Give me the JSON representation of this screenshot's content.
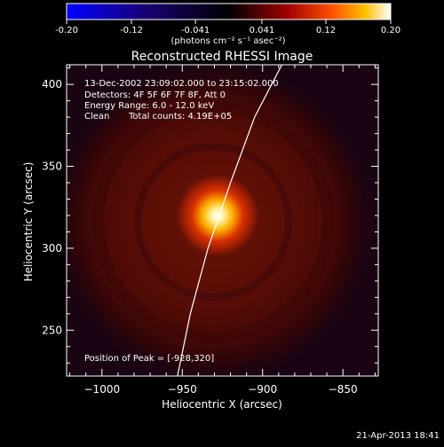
{
  "colorbar": {
    "ticks": [
      "-0.20",
      "-0.12",
      "-0.041",
      "0.041",
      "0.12",
      "0.20"
    ],
    "unit_label": "(photons cm⁻² s⁻¹ asec⁻²)"
  },
  "chart_data": {
    "type": "heatmap",
    "title": "Reconstructed RHESSI Image",
    "xlabel": "Heliocentric X (arcsec)",
    "ylabel": "Heliocentric Y (arcsec)",
    "xlim": [
      -1022,
      -828
    ],
    "ylim": [
      222,
      412
    ],
    "x_ticks": [
      -1000,
      -950,
      -900,
      -850
    ],
    "y_ticks": [
      250,
      300,
      350,
      400
    ],
    "x_tick_labels": [
      "−1000",
      "−950",
      "−900",
      "−850"
    ],
    "y_tick_labels": [
      "250",
      "300",
      "350",
      "400"
    ],
    "colorbar_range": [
      -0.2,
      0.2
    ],
    "peak": {
      "x": -928,
      "y": 320
    },
    "limb_curve": [
      [
        -953,
        222
      ],
      [
        -945,
        260
      ],
      [
        -934,
        300
      ],
      [
        -920,
        340
      ],
      [
        -905,
        380
      ],
      [
        -888,
        412
      ]
    ],
    "annotations": {
      "time_range": "13-Dec-2002 23:09:02.000 to 23:15:02.000",
      "detectors": "Detectors: 4F 5F 6F 7F 8F, Att 0",
      "energy": "Energy Range: 6.0 - 12.0 keV",
      "clean": "Clean",
      "counts": "Total counts: 4.19E+05",
      "peak_text": "Position of Peak = [-928,320]"
    }
  },
  "footer": {
    "timestamp": "21-Apr-2013 18:41"
  }
}
